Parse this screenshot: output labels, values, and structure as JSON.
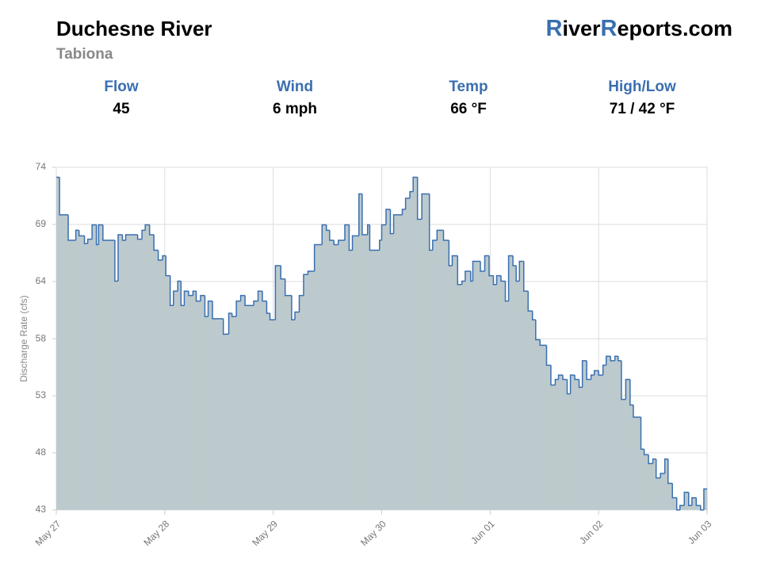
{
  "header": {
    "title": "Duchesne River",
    "subtitle": "Tabiona",
    "brand": [
      "R",
      "iver",
      "R",
      "eports.com"
    ]
  },
  "stats": [
    {
      "label": "Flow",
      "value": 45
    },
    {
      "label": "Wind",
      "value": "6 mph"
    },
    {
      "label": "Temp",
      "value": "66 °F"
    },
    {
      "label": "High/Low",
      "value": "71 / 42 °F"
    }
  ],
  "chart_data": {
    "type": "step",
    "y_label": "Discharge Rate (cfs)",
    "color": "#3a6fb0",
    "fill": "#bccacd",
    "grid": true,
    "xlim": [
      0,
      6
    ],
    "xticks": [
      {
        "value": 0,
        "label": "May 27"
      },
      {
        "value": 1,
        "label": "May 28"
      },
      {
        "value": 2,
        "label": "May 29"
      },
      {
        "value": 3,
        "label": "May 30"
      },
      {
        "value": 4,
        "label": "Jun 01"
      },
      {
        "value": 5,
        "label": "Jun 02"
      },
      {
        "value": 6,
        "label": "Jun 03"
      }
    ],
    "ylim": [
      43,
      74
    ],
    "yticks": [
      43,
      {
        "value": 48.17,
        "label": "48"
      },
      {
        "value": 53.33,
        "label": "53"
      },
      {
        "value": 58.49,
        "label": "58"
      },
      {
        "value": 63.67,
        "label": "64"
      },
      {
        "value": 68.83,
        "label": "69"
      },
      74
    ],
    "x": [
      0,
      0.03,
      0.11,
      0.18,
      0.21,
      0.26,
      0.29,
      0.33,
      0.37,
      0.39,
      0.43,
      0.54,
      0.57,
      0.61,
      0.64,
      0.75,
      0.79,
      0.82,
      0.86,
      0.9,
      0.94,
      0.98,
      1.01,
      1.05,
      1.08,
      1.12,
      1.15,
      1.18,
      1.22,
      1.26,
      1.29,
      1.33,
      1.37,
      1.4,
      1.44,
      1.54,
      1.59,
      1.62,
      1.66,
      1.7,
      1.74,
      1.82,
      1.86,
      1.9,
      1.94,
      1.97,
      2.02,
      2.07,
      2.11,
      2.17,
      2.2,
      2.24,
      2.28,
      2.32,
      2.38,
      2.45,
      2.49,
      2.52,
      2.56,
      2.6,
      2.66,
      2.7,
      2.73,
      2.79,
      2.82,
      2.87,
      2.89,
      2.98,
      3.0,
      3.04,
      3.08,
      3.11,
      3.19,
      3.22,
      3.26,
      3.29,
      3.33,
      3.37,
      3.44,
      3.47,
      3.51,
      3.57,
      3.62,
      3.65,
      3.7,
      3.74,
      3.77,
      3.82,
      3.84,
      3.91,
      3.95,
      3.99,
      4.03,
      4.06,
      4.1,
      4.14,
      4.17,
      4.21,
      4.24,
      4.27,
      4.31,
      4.35,
      4.39,
      4.42,
      4.46,
      4.52,
      4.56,
      4.6,
      4.63,
      4.67,
      4.71,
      4.74,
      4.78,
      4.82,
      4.85,
      4.89,
      4.93,
      4.96,
      5.0,
      5.04,
      5.07,
      5.11,
      5.15,
      5.18,
      5.21,
      5.25,
      5.29,
      5.32,
      5.39,
      5.42,
      5.46,
      5.5,
      5.53,
      5.57,
      5.61,
      5.64,
      5.68,
      5.72,
      5.75,
      5.79,
      5.83,
      5.86,
      5.9,
      5.94,
      5.97
    ],
    "values": [
      73.1,
      69.7,
      67.4,
      68.3,
      67.8,
      67.1,
      67.5,
      68.8,
      67.0,
      68.8,
      67.4,
      63.7,
      67.9,
      67.4,
      67.9,
      67.5,
      68.3,
      68.8,
      67.9,
      66.5,
      65.6,
      66.0,
      64.2,
      61.5,
      62.8,
      63.7,
      61.5,
      62.8,
      62.4,
      62.8,
      61.9,
      62.4,
      60.5,
      61.9,
      60.3,
      58.9,
      60.8,
      60.5,
      61.9,
      62.4,
      61.5,
      61.9,
      62.8,
      61.9,
      60.8,
      60.2,
      65.1,
      63.9,
      62.4,
      60.2,
      60.9,
      62.4,
      64.3,
      64.6,
      67.0,
      68.8,
      68.3,
      67.4,
      67.0,
      67.4,
      68.8,
      66.5,
      67.8,
      71.6,
      67.9,
      68.8,
      66.5,
      67.4,
      68.8,
      70.2,
      68.0,
      69.7,
      70.2,
      71.2,
      71.8,
      73.1,
      69.3,
      71.6,
      66.5,
      67.4,
      68.3,
      67.4,
      65.1,
      66.0,
      63.4,
      63.7,
      64.6,
      63.7,
      65.5,
      64.6,
      66.0,
      64.2,
      63.4,
      64.2,
      63.7,
      61.9,
      66.0,
      65.1,
      63.7,
      65.5,
      62.8,
      61.0,
      60.2,
      58.4,
      57.9,
      56.1,
      54.3,
      54.8,
      55.2,
      54.8,
      53.5,
      55.2,
      54.8,
      54.1,
      56.5,
      54.8,
      55.2,
      55.6,
      55.2,
      56.1,
      56.9,
      56.5,
      56.9,
      56.5,
      53.0,
      54.8,
      52.5,
      51.4,
      48.5,
      48.0,
      47.2,
      47.6,
      45.9,
      46.3,
      47.6,
      45.4,
      44.1,
      43.0,
      43.4,
      44.6,
      43.4,
      44.1,
      43.4,
      43.0,
      44.9
    ]
  }
}
